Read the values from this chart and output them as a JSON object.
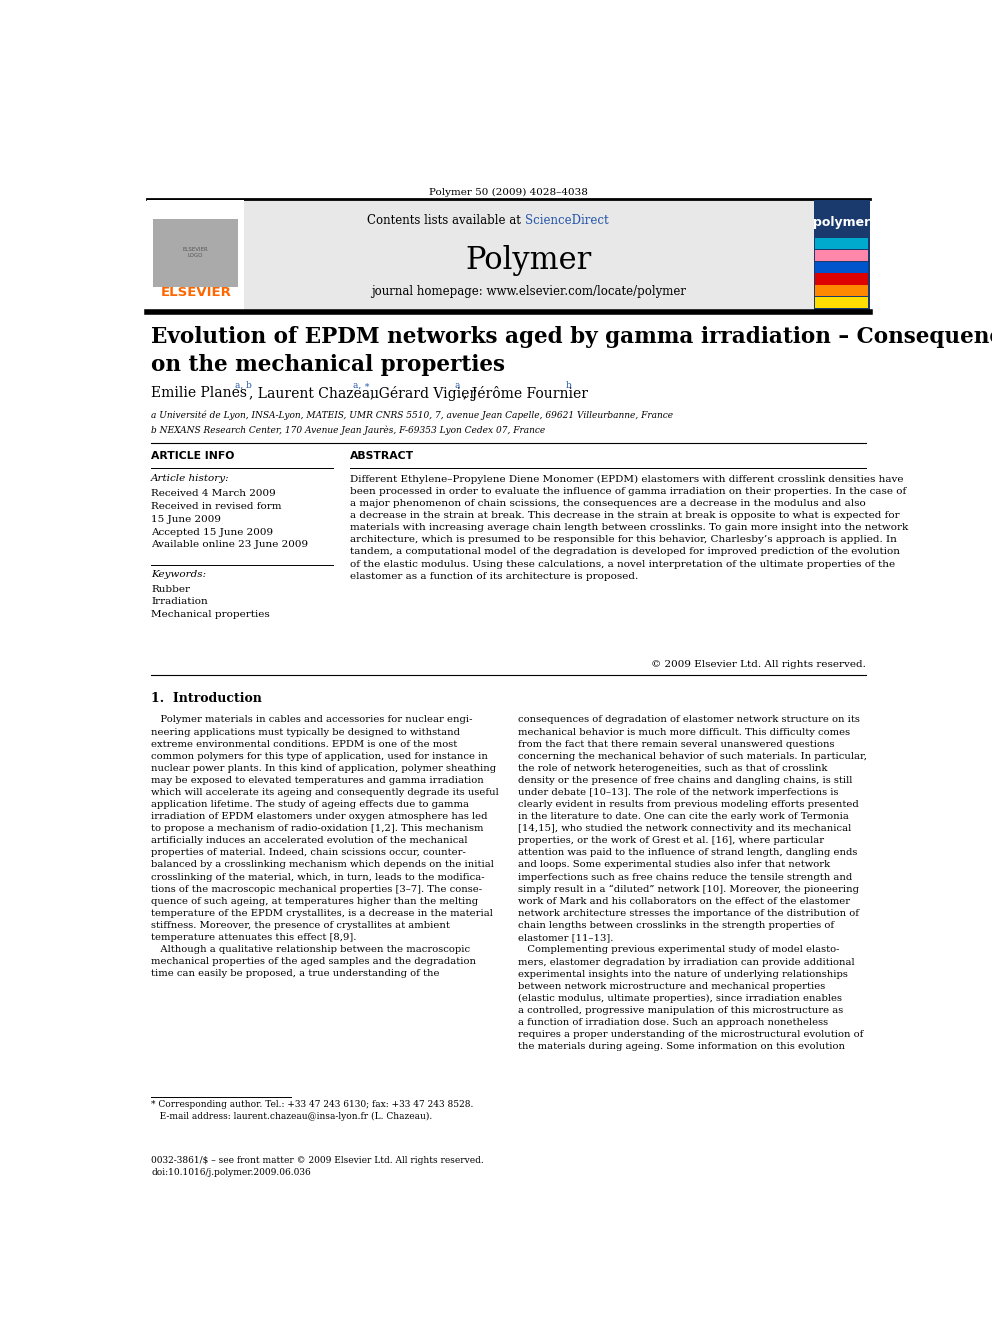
{
  "background_color": "#ffffff",
  "page_width": 9.92,
  "page_height": 13.23,
  "top_citation": "Polymer 50 (2009) 4028–4038",
  "header_bg": "#e8e8e8",
  "header_contents_text": "Contents lists available at ",
  "header_sciencedirect": "ScienceDirect",
  "header_journal": "Polymer",
  "header_homepage": "journal homepage: www.elsevier.com/locate/polymer",
  "article_title": "Evolution of EPDM networks aged by gamma irradiation – Consequences\non the mechanical properties",
  "affil_a": "a Université de Lyon, INSA-Lyon, MATEIS, UMR CNRS 5510, 7, avenue Jean Capelle, 69621 Villeurbanne, France",
  "affil_b": "b NEXANS Research Center, 170 Avenue Jean Jaurès, F-69353 Lyon Cedex 07, France",
  "article_info_title": "ARTICLE INFO",
  "article_history_title": "Article history:",
  "article_history": "Received 4 March 2009\nReceived in revised form\n15 June 2009\nAccepted 15 June 2009\nAvailable online 23 June 2009",
  "keywords_title": "Keywords:",
  "keywords": "Rubber\nIrradiation\nMechanical properties",
  "abstract_title": "ABSTRACT",
  "abstract_text": "Different Ethylene–Propylene Diene Monomer (EPDM) elastomers with different crosslink densities have\nbeen processed in order to evaluate the influence of gamma irradiation on their properties. In the case of\na major phenomenon of chain scissions, the consequences are a decrease in the modulus and also\na decrease in the strain at break. This decrease in the strain at break is opposite to what is expected for\nmaterials with increasing average chain length between crosslinks. To gain more insight into the network\narchitecture, which is presumed to be responsible for this behavior, Charlesby’s approach is applied. In\ntandem, a computational model of the degradation is developed for improved prediction of the evolution\nof the elastic modulus. Using these calculations, a novel interpretation of the ultimate properties of the\nelastomer as a function of its architecture is proposed.",
  "copyright": "© 2009 Elsevier Ltd. All rights reserved.",
  "intro_title": "1.  Introduction",
  "intro_left": "   Polymer materials in cables and accessories for nuclear engi-\nneering applications must typically be designed to withstand\nextreme environmental conditions. EPDM is one of the most\ncommon polymers for this type of application, used for instance in\nnuclear power plants. In this kind of application, polymer sheathing\nmay be exposed to elevated temperatures and gamma irradiation\nwhich will accelerate its ageing and consequently degrade its useful\napplication lifetime. The study of ageing effects due to gamma\nirradiation of EPDM elastomers under oxygen atmosphere has led\nto propose a mechanism of radio-oxidation [1,2]. This mechanism\nartificially induces an accelerated evolution of the mechanical\nproperties of material. Indeed, chain scissions occur, counter-\nbalanced by a crosslinking mechanism which depends on the initial\ncrosslinking of the material, which, in turn, leads to the modifica-\ntions of the macroscopic mechanical properties [3–7]. The conse-\nquence of such ageing, at temperatures higher than the melting\ntemperature of the EPDM crystallites, is a decrease in the material\nstiffness. Moreover, the presence of crystallites at ambient\ntemperature attenuates this effect [8,9].\n   Although a qualitative relationship between the macroscopic\nmechanical properties of the aged samples and the degradation\ntime can easily be proposed, a true understanding of the",
  "intro_right": "consequences of degradation of elastomer network structure on its\nmechanical behavior is much more difficult. This difficulty comes\nfrom the fact that there remain several unanswered questions\nconcerning the mechanical behavior of such materials. In particular,\nthe role of network heterogeneities, such as that of crosslink\ndensity or the presence of free chains and dangling chains, is still\nunder debate [10–13]. The role of the network imperfections is\nclearly evident in results from previous modeling efforts presented\nin the literature to date. One can cite the early work of Termonia\n[14,15], who studied the network connectivity and its mechanical\nproperties, or the work of Grest et al. [16], where particular\nattention was paid to the influence of strand length, dangling ends\nand loops. Some experimental studies also infer that network\nimperfections such as free chains reduce the tensile strength and\nsimply result in a “diluted” network [10]. Moreover, the pioneering\nwork of Mark and his collaborators on the effect of the elastomer\nnetwork architecture stresses the importance of the distribution of\nchain lengths between crosslinks in the strength properties of\nelastomer [11–13].\n   Complementing previous experimental study of model elasto-\nmers, elastomer degradation by irradiation can provide additional\nexperimental insights into the nature of underlying relationships\nbetween network microstructure and mechanical properties\n(elastic modulus, ultimate properties), since irradiation enables\na controlled, progressive manipulation of this microstructure as\na function of irradiation dose. Such an approach nonetheless\nrequires a proper understanding of the microstructural evolution of\nthe materials during ageing. Some information on this evolution",
  "footnote_star": "* Corresponding author. Tel.: +33 47 243 6130; fax: +33 47 243 8528.\n   E-mail address: laurent.chazeau@insa-lyon.fr (L. Chazeau).",
  "footnote_issn": "0032-3861/$ – see front matter © 2009 Elsevier Ltd. All rights reserved.\ndoi:10.1016/j.polymer.2009.06.036",
  "elsevier_color": "#FF6600",
  "sciencedirect_color": "#2255aa",
  "link_color": "#2255aa"
}
